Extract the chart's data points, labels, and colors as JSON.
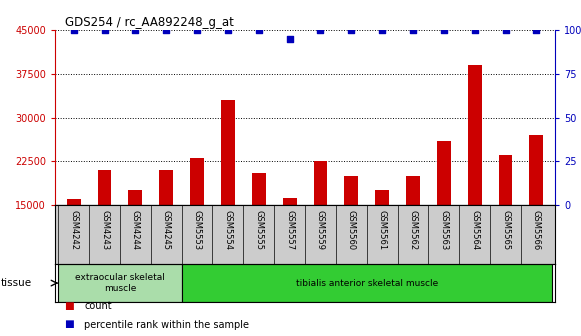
{
  "title": "GDS254 / rc_AA892248_g_at",
  "categories": [
    "GSM4242",
    "GSM4243",
    "GSM4244",
    "GSM4245",
    "GSM5553",
    "GSM5554",
    "GSM5555",
    "GSM5557",
    "GSM5559",
    "GSM5560",
    "GSM5561",
    "GSM5562",
    "GSM5563",
    "GSM5564",
    "GSM5565",
    "GSM5566"
  ],
  "counts": [
    16000,
    21000,
    17500,
    21000,
    23000,
    33000,
    20500,
    16200,
    22500,
    20000,
    17500,
    20000,
    26000,
    39000,
    23500,
    27000
  ],
  "percentiles": [
    100,
    100,
    100,
    100,
    100,
    100,
    100,
    95,
    100,
    100,
    100,
    100,
    100,
    100,
    100,
    100
  ],
  "bar_color": "#cc0000",
  "dot_color": "#0000bb",
  "ylim_left": [
    15000,
    45000
  ],
  "yticks_left": [
    15000,
    22500,
    30000,
    37500,
    45000
  ],
  "ylim_right": [
    0,
    100
  ],
  "yticks_right": [
    0,
    25,
    50,
    75,
    100
  ],
  "tissue_groups": [
    {
      "label": "extraocular skeletal\nmuscle",
      "start": 0,
      "end": 3,
      "color": "#aaddaa"
    },
    {
      "label": "tibialis anterior skeletal muscle",
      "start": 4,
      "end": 15,
      "color": "#33cc33"
    }
  ],
  "tissue_label": "tissue",
  "legend_count_label": "count",
  "legend_pct_label": "percentile rank within the sample",
  "background_color": "#ffffff",
  "axis_color_left": "#cc0000",
  "axis_color_right": "#0000bb",
  "grid_color": "#000000",
  "xlabel_area_color": "#cccccc"
}
